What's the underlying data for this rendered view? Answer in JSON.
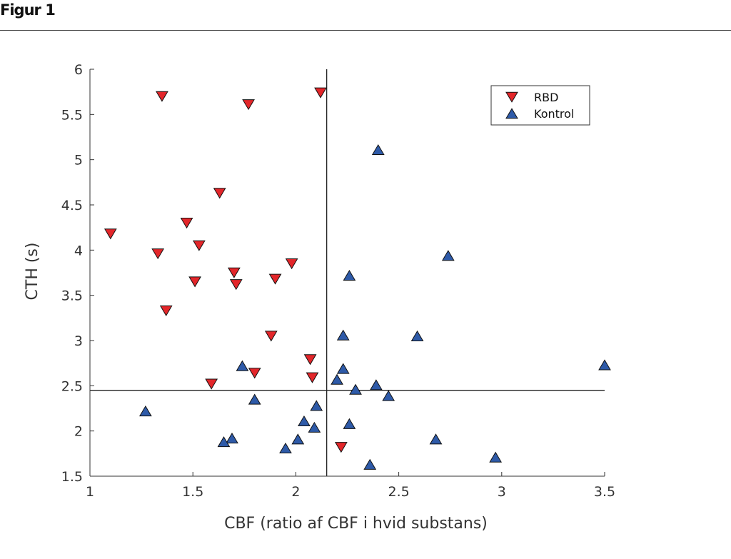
{
  "figure": {
    "title": "Figur 1"
  },
  "chart_data": {
    "type": "scatter",
    "xlabel": "CBF (ratio af CBF i hvid substans)",
    "ylabel": "CTH (s)",
    "xlim": [
      1,
      3.5
    ],
    "ylim": [
      1.5,
      6
    ],
    "x_ticks": [
      "1",
      "1.5",
      "2",
      "2.5",
      "3",
      "3.5"
    ],
    "y_ticks": [
      "1.5",
      "2",
      "2.5",
      "3",
      "3.5",
      "4",
      "4.5",
      "5",
      "5.5",
      "6"
    ],
    "reference_lines": {
      "vertical_x": 2.15,
      "horizontal_y": 2.45
    },
    "legend_position": "top-right",
    "series": [
      {
        "name": "RBD",
        "marker": "triangle-down",
        "color": "#e3262a",
        "points": [
          [
            1.35,
            5.7
          ],
          [
            1.77,
            5.61
          ],
          [
            2.12,
            5.74
          ],
          [
            1.63,
            4.63
          ],
          [
            1.1,
            4.18
          ],
          [
            1.47,
            4.3
          ],
          [
            1.53,
            4.05
          ],
          [
            1.33,
            3.96
          ],
          [
            1.51,
            3.65
          ],
          [
            1.7,
            3.75
          ],
          [
            1.71,
            3.62
          ],
          [
            1.9,
            3.68
          ],
          [
            1.98,
            3.85
          ],
          [
            1.37,
            3.33
          ],
          [
            1.88,
            3.05
          ],
          [
            2.07,
            2.79
          ],
          [
            2.08,
            2.59
          ],
          [
            1.8,
            2.64
          ],
          [
            1.59,
            2.52
          ],
          [
            2.22,
            1.82
          ]
        ]
      },
      {
        "name": "Kontrol",
        "marker": "triangle-up",
        "color": "#2e5aa8",
        "points": [
          [
            2.4,
            5.11
          ],
          [
            2.74,
            3.94
          ],
          [
            2.26,
            3.72
          ],
          [
            2.23,
            3.06
          ],
          [
            2.59,
            3.05
          ],
          [
            3.5,
            2.73
          ],
          [
            1.74,
            2.72
          ],
          [
            2.23,
            2.69
          ],
          [
            2.2,
            2.57
          ],
          [
            2.29,
            2.46
          ],
          [
            2.39,
            2.51
          ],
          [
            2.45,
            2.39
          ],
          [
            1.8,
            2.35
          ],
          [
            1.27,
            2.22
          ],
          [
            2.1,
            2.28
          ],
          [
            2.04,
            2.11
          ],
          [
            2.26,
            2.08
          ],
          [
            2.09,
            2.04
          ],
          [
            2.01,
            1.91
          ],
          [
            1.69,
            1.92
          ],
          [
            1.65,
            1.88
          ],
          [
            1.95,
            1.81
          ],
          [
            2.68,
            1.91
          ],
          [
            2.97,
            1.71
          ],
          [
            2.36,
            1.63
          ]
        ]
      }
    ]
  }
}
